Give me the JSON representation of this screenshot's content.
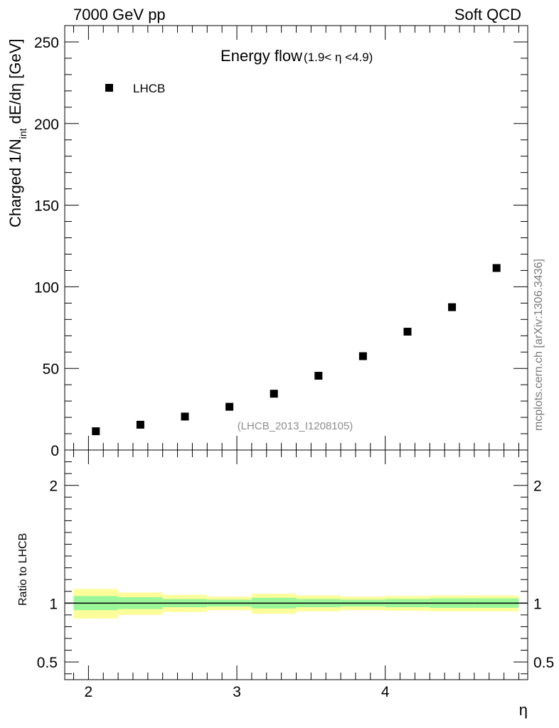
{
  "header": {
    "left_label": "7000 GeV pp",
    "right_label": "Soft QCD"
  },
  "watermark": {
    "side_text": "mcplots.cern.ch [arXiv:1306.3436]",
    "analysis_id": "(LHCB_2013_I1208105)"
  },
  "colors": {
    "marker": "#000000",
    "band_inner": "#99f799",
    "band_outer": "#fdfd9a",
    "watermark": "#8c8c8c"
  },
  "chart_data": [
    {
      "type": "scatter",
      "title": "Energy flow",
      "subtitle": "(1.9< η <4.9)",
      "xlabel": "η",
      "ylabel": "Charged 1/N_int dE/dη [GeV]",
      "ylabel_parts": {
        "main": "Charged 1/N",
        "sub": "int",
        "rest": " dE/dη [GeV]"
      },
      "xlim": [
        1.84,
        4.96
      ],
      "ylim": [
        0,
        260
      ],
      "y_ticks": [
        0,
        50,
        100,
        150,
        200,
        250
      ],
      "x_ticks": [
        2,
        3,
        4
      ],
      "legend": {
        "position": "top-left",
        "entries": [
          "LHCB"
        ]
      },
      "series": [
        {
          "name": "LHCB",
          "x": [
            2.05,
            2.35,
            2.65,
            2.95,
            3.25,
            3.55,
            3.85,
            4.15,
            4.45,
            4.75
          ],
          "y": [
            11.5,
            15.5,
            20.5,
            26.5,
            34.5,
            45.5,
            57.5,
            72.5,
            87.5,
            111.5
          ]
        }
      ]
    },
    {
      "type": "area",
      "ylabel": "Ratio to LHCB",
      "xlim": [
        1.84,
        4.96
      ],
      "ylim": [
        0.35,
        2.3
      ],
      "y_ticks": [
        0.5,
        1,
        2
      ],
      "reference_line": 1,
      "bins": [
        {
          "lo": 1.9,
          "hi": 2.2,
          "inner": [
            0.94,
            1.06
          ],
          "outer": [
            0.87,
            1.12
          ]
        },
        {
          "lo": 2.2,
          "hi": 2.5,
          "inner": [
            0.95,
            1.05
          ],
          "outer": [
            0.9,
            1.09
          ]
        },
        {
          "lo": 2.5,
          "hi": 2.8,
          "inner": [
            0.965,
            1.035
          ],
          "outer": [
            0.925,
            1.07
          ]
        },
        {
          "lo": 2.8,
          "hi": 3.1,
          "inner": [
            0.97,
            1.03
          ],
          "outer": [
            0.94,
            1.055
          ]
        },
        {
          "lo": 3.1,
          "hi": 3.4,
          "inner": [
            0.955,
            1.045
          ],
          "outer": [
            0.91,
            1.08
          ]
        },
        {
          "lo": 3.4,
          "hi": 3.7,
          "inner": [
            0.965,
            1.035
          ],
          "outer": [
            0.93,
            1.065
          ]
        },
        {
          "lo": 3.7,
          "hi": 4.0,
          "inner": [
            0.97,
            1.03
          ],
          "outer": [
            0.94,
            1.055
          ]
        },
        {
          "lo": 4.0,
          "hi": 4.3,
          "inner": [
            0.965,
            1.035
          ],
          "outer": [
            0.935,
            1.06
          ]
        },
        {
          "lo": 4.3,
          "hi": 4.6,
          "inner": [
            0.96,
            1.04
          ],
          "outer": [
            0.93,
            1.065
          ]
        },
        {
          "lo": 4.6,
          "hi": 4.9,
          "inner": [
            0.96,
            1.04
          ],
          "outer": [
            0.93,
            1.065
          ]
        }
      ]
    }
  ]
}
